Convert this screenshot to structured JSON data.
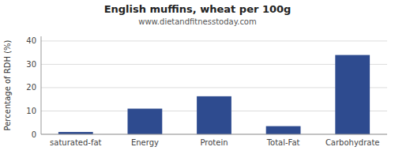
{
  "chart_data": {
    "type": "bar",
    "title": "English muffins, wheat per 100g",
    "subtitle": "www.dietandfitnesstoday.com",
    "categories": [
      "saturated-fat",
      "Energy",
      "Protein",
      "Total-Fat",
      "Carbohydrate"
    ],
    "values": [
      1.0,
      11.0,
      16.3,
      3.5,
      34.0
    ],
    "color": "#2e4b8f",
    "ylabel": "Percentage of RDH (%)",
    "ylim": [
      0,
      42
    ],
    "yticks": [
      0,
      10,
      20,
      30,
      40
    ],
    "grid": true
  }
}
